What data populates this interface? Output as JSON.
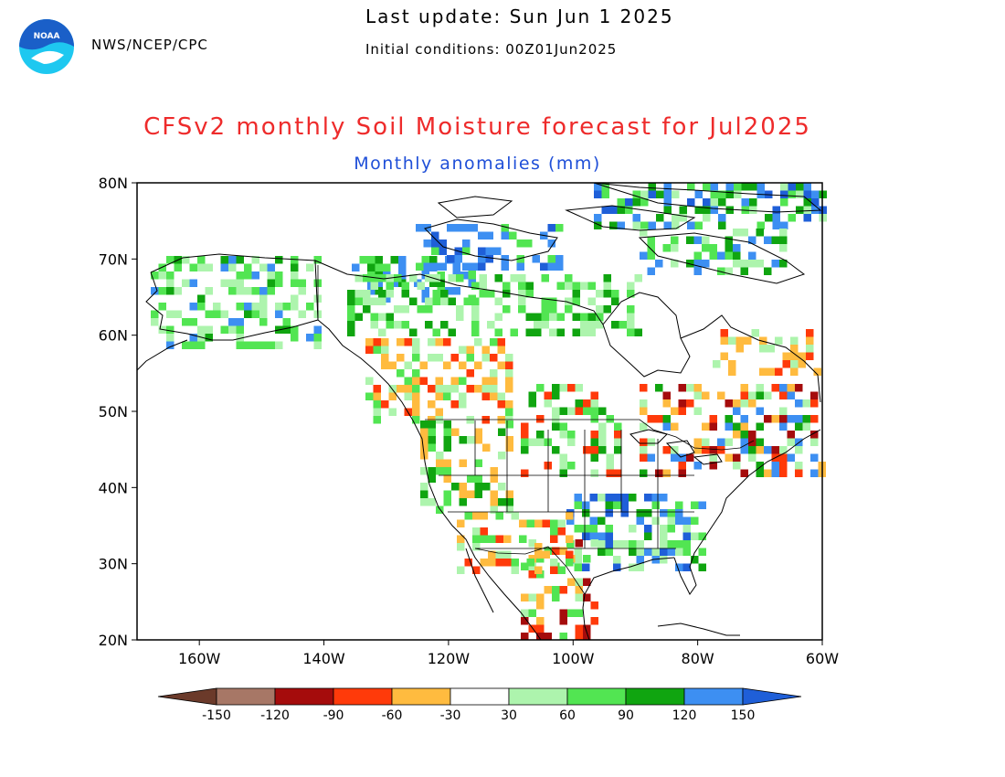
{
  "header": {
    "agency": "NWS/NCEP/CPC",
    "last_update": "Last update: Sun Jun 1 2025",
    "initial_conditions": "Initial conditions: 00Z01Jun2025",
    "logo_text": "NOAA"
  },
  "map": {
    "title": "CFSv2 monthly Soil Moisture forecast for Jul2025",
    "subtitle": "Monthly anomalies (mm)",
    "lat_labels": [
      "80N",
      "70N",
      "60N",
      "50N",
      "40N",
      "30N",
      "20N"
    ],
    "lon_labels": [
      "160W",
      "140W",
      "120W",
      "100W",
      "80W",
      "60W"
    ],
    "lat_range": [
      20,
      80
    ],
    "lon_range": [
      -170,
      -60
    ],
    "region": "North America"
  },
  "colorbar": {
    "labels": [
      "-150",
      "-120",
      "-90",
      "-60",
      "-30",
      "30",
      "60",
      "90",
      "120",
      "150"
    ],
    "colors": [
      "#6b3a2a",
      "#a77766",
      "#a50c0c",
      "#ff3a0a",
      "#ffbb3f",
      "#ffffff",
      "#adf4ad",
      "#52e552",
      "#10a510",
      "#3d8ff2",
      "#1f5fd8"
    ]
  },
  "colors": {
    "title": "#ee2b2b",
    "subtitle": "#1f4fd8",
    "logo_blue": "#1a5fc8",
    "logo_cyan": "#1ec8f0"
  }
}
